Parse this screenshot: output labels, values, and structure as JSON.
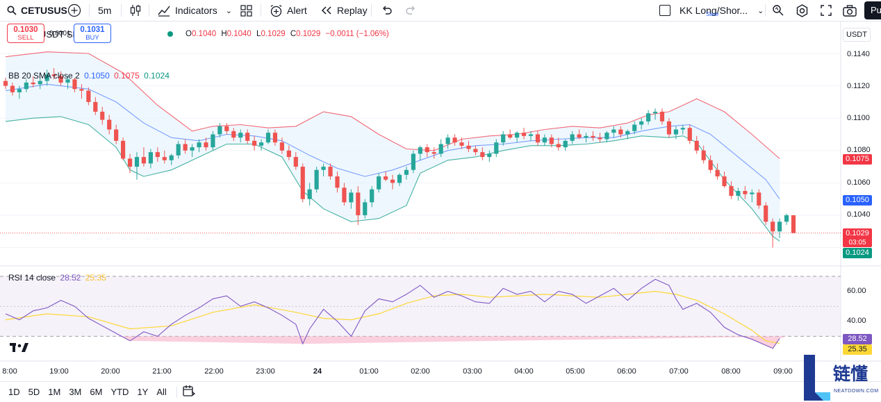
{
  "toolbar": {
    "symbol": "CETUSUS",
    "interval": "5m",
    "indicators_label": "Indicators",
    "alert_label": "Alert",
    "replay_label": "Replay",
    "layout_name": "KK Long/Shor...",
    "layout_save": "Save",
    "publish_label": "Pu"
  },
  "legend": {
    "title": "CETUSUSDT SPOT ·",
    "ohlc": {
      "o_label": "O",
      "o": "0.1040",
      "h_label": "H",
      "h": "0.1040",
      "l_label": "L",
      "l": "0.1029",
      "c_label": "C",
      "c": "0.1029",
      "change": "−0.0011 (−1.06%)"
    },
    "sell_price": "0.1030",
    "sell_label": "SELL",
    "spread": "0.0001",
    "buy_price": "0.1031",
    "buy_label": "BUY",
    "bb_label": "BB 20 SMA close 2",
    "bb_basis": "0.1050",
    "bb_upper": "0.1075",
    "bb_lower": "0.1024",
    "rsi_label": "RSI 14 close",
    "rsi_value": "28.52",
    "rsi_ma": "25.35"
  },
  "price_axis": {
    "currency": "USDT",
    "labels": [
      "0.1140",
      "0.1120",
      "0.1100",
      "0.1080",
      "0.1060",
      "0.1040"
    ],
    "tag_upper": "0.1075",
    "tag_basis": "0.1050",
    "tag_last": "0.1029",
    "tag_countdown": "03:05",
    "tag_lower": "0.1024"
  },
  "rsi_axis": {
    "labels": [
      "60.00",
      "40.00"
    ],
    "tag_rsi": "28.52",
    "tag_ma": "25.35"
  },
  "time_axis": [
    "8:00",
    "19:00",
    "20:00",
    "21:00",
    "22:00",
    "23:00",
    "24",
    "01:00",
    "02:00",
    "03:00",
    "04:00",
    "05:00",
    "06:00",
    "07:00",
    "08:00",
    "09:00"
  ],
  "range_bar": [
    "1D",
    "5D",
    "1M",
    "3M",
    "6M",
    "YTD",
    "1Y",
    "All"
  ],
  "colors": {
    "up": "#26a69a",
    "down": "#ef5350",
    "basis": "#2962ff",
    "upper": "#f23645",
    "lower": "#089981",
    "rsi": "#7e57c2",
    "rsi_ma": "#fdd835",
    "bb_fill": "#e3f2fd",
    "rsi_fill": "#ede7f6"
  },
  "watermark": {
    "text": "链懂",
    "sub": "NEATDOWN.COM"
  },
  "chart_data": {
    "type": "candlestick",
    "symbol": "CETUSUSDT SPOT",
    "time_start": "18:00",
    "time_end": "09:15",
    "ohlc": [
      [
        0.1123,
        0.1125,
        0.1118,
        0.112
      ],
      [
        0.112,
        0.1122,
        0.1114,
        0.1116
      ],
      [
        0.1116,
        0.112,
        0.1112,
        0.1118
      ],
      [
        0.1118,
        0.1124,
        0.1116,
        0.1122
      ],
      [
        0.1122,
        0.1126,
        0.1119,
        0.1121
      ],
      [
        0.1121,
        0.1125,
        0.1118,
        0.1123
      ],
      [
        0.1123,
        0.113,
        0.112,
        0.1127
      ],
      [
        0.1127,
        0.1131,
        0.1124,
        0.1126
      ],
      [
        0.1126,
        0.1129,
        0.112,
        0.1122
      ],
      [
        0.1122,
        0.1126,
        0.1118,
        0.1124
      ],
      [
        0.1124,
        0.1125,
        0.1116,
        0.1118
      ],
      [
        0.1118,
        0.1121,
        0.1112,
        0.1117
      ],
      [
        0.1117,
        0.1119,
        0.1108,
        0.111
      ],
      [
        0.111,
        0.1113,
        0.1102,
        0.1104
      ],
      [
        0.1104,
        0.1107,
        0.1096,
        0.1099
      ],
      [
        0.1099,
        0.1102,
        0.109,
        0.1093
      ],
      [
        0.1093,
        0.1096,
        0.1084,
        0.1086
      ],
      [
        0.1086,
        0.1088,
        0.1074,
        0.1075
      ],
      [
        0.1075,
        0.1078,
        0.1066,
        0.107
      ],
      [
        0.107,
        0.1079,
        0.1062,
        0.1076
      ],
      [
        0.1076,
        0.1082,
        0.107,
        0.1072
      ],
      [
        0.1072,
        0.1081,
        0.1069,
        0.1079
      ],
      [
        0.1079,
        0.1082,
        0.1073,
        0.1076
      ],
      [
        0.1076,
        0.108,
        0.1072,
        0.1074
      ],
      [
        0.1074,
        0.1078,
        0.1071,
        0.1077
      ],
      [
        0.1077,
        0.1086,
        0.1075,
        0.1084
      ],
      [
        0.1084,
        0.1087,
        0.1078,
        0.108
      ],
      [
        0.108,
        0.1084,
        0.1076,
        0.1082
      ],
      [
        0.1082,
        0.1087,
        0.1079,
        0.1085
      ],
      [
        0.1085,
        0.1088,
        0.108,
        0.1082
      ],
      [
        0.1082,
        0.1092,
        0.108,
        0.109
      ],
      [
        0.109,
        0.1097,
        0.1088,
        0.1095
      ],
      [
        0.1095,
        0.1097,
        0.109,
        0.1092
      ],
      [
        0.1092,
        0.1094,
        0.1086,
        0.1088
      ],
      [
        0.1088,
        0.1093,
        0.1085,
        0.1091
      ],
      [
        0.1091,
        0.1093,
        0.1084,
        0.1086
      ],
      [
        0.1086,
        0.1089,
        0.108,
        0.1083
      ],
      [
        0.1083,
        0.1087,
        0.108,
        0.1085
      ],
      [
        0.1085,
        0.1093,
        0.1084,
        0.1091
      ],
      [
        0.1091,
        0.1093,
        0.1083,
        0.1085
      ],
      [
        0.1085,
        0.1088,
        0.1078,
        0.108
      ],
      [
        0.108,
        0.1083,
        0.1074,
        0.1076
      ],
      [
        0.1076,
        0.1079,
        0.1068,
        0.107
      ],
      [
        0.107,
        0.1072,
        0.1048,
        0.105
      ],
      [
        0.105,
        0.106,
        0.1046,
        0.1056
      ],
      [
        0.1056,
        0.107,
        0.1054,
        0.1068
      ],
      [
        0.1068,
        0.1072,
        0.1064,
        0.107
      ],
      [
        0.107,
        0.1072,
        0.1062,
        0.1064
      ],
      [
        0.1064,
        0.1067,
        0.1054,
        0.1057
      ],
      [
        0.1057,
        0.106,
        0.1046,
        0.1048
      ],
      [
        0.1048,
        0.1056,
        0.1044,
        0.1054
      ],
      [
        0.1054,
        0.1058,
        0.1034,
        0.104
      ],
      [
        0.104,
        0.105,
        0.1038,
        0.1048
      ],
      [
        0.1048,
        0.1058,
        0.1045,
        0.1056
      ],
      [
        0.1056,
        0.1066,
        0.1054,
        0.1064
      ],
      [
        0.1064,
        0.1067,
        0.1061,
        0.1062
      ],
      [
        0.1062,
        0.1065,
        0.1056,
        0.106
      ],
      [
        0.106,
        0.1066,
        0.1058,
        0.1065
      ],
      [
        0.1065,
        0.107,
        0.1062,
        0.1068
      ],
      [
        0.1068,
        0.108,
        0.1066,
        0.1078
      ],
      [
        0.1078,
        0.1083,
        0.1074,
        0.1082
      ],
      [
        0.1082,
        0.1084,
        0.1076,
        0.1079
      ],
      [
        0.1079,
        0.1082,
        0.1075,
        0.1078
      ],
      [
        0.1078,
        0.1087,
        0.1076,
        0.1084
      ],
      [
        0.1084,
        0.109,
        0.1081,
        0.1088
      ],
      [
        0.1088,
        0.109,
        0.1083,
        0.1085
      ],
      [
        0.1085,
        0.1088,
        0.1081,
        0.1083
      ],
      [
        0.1083,
        0.1086,
        0.1079,
        0.1081
      ],
      [
        0.1081,
        0.1083,
        0.1077,
        0.1079
      ],
      [
        0.1079,
        0.1082,
        0.1074,
        0.1076
      ],
      [
        0.1076,
        0.108,
        0.1073,
        0.1078
      ],
      [
        0.1078,
        0.1087,
        0.1076,
        0.1085
      ],
      [
        0.1085,
        0.1092,
        0.1083,
        0.109
      ],
      [
        0.109,
        0.1093,
        0.1087,
        0.1088
      ],
      [
        0.1088,
        0.1092,
        0.1085,
        0.1091
      ],
      [
        0.1091,
        0.1094,
        0.1087,
        0.1089
      ],
      [
        0.1089,
        0.1092,
        0.1086,
        0.109
      ],
      [
        0.109,
        0.1092,
        0.1083,
        0.1085
      ],
      [
        0.1085,
        0.109,
        0.1083,
        0.1088
      ],
      [
        0.1088,
        0.109,
        0.1082,
        0.1084
      ],
      [
        0.1084,
        0.1088,
        0.108,
        0.1082
      ],
      [
        0.1082,
        0.1087,
        0.108,
        0.1086
      ],
      [
        0.1086,
        0.1092,
        0.1084,
        0.109
      ],
      [
        0.109,
        0.1093,
        0.1087,
        0.1088
      ],
      [
        0.1088,
        0.1091,
        0.1085,
        0.1089
      ],
      [
        0.1089,
        0.1092,
        0.1086,
        0.1088
      ],
      [
        0.1088,
        0.1091,
        0.1085,
        0.1087
      ],
      [
        0.1087,
        0.1092,
        0.1085,
        0.1091
      ],
      [
        0.1091,
        0.1095,
        0.1088,
        0.1093
      ],
      [
        0.1093,
        0.1095,
        0.1088,
        0.109
      ],
      [
        0.109,
        0.1093,
        0.1087,
        0.1092
      ],
      [
        0.1092,
        0.1098,
        0.109,
        0.1096
      ],
      [
        0.1096,
        0.11,
        0.1093,
        0.1098
      ],
      [
        0.1098,
        0.1105,
        0.1096,
        0.1103
      ],
      [
        0.1103,
        0.1106,
        0.1099,
        0.1104
      ],
      [
        0.1104,
        0.1106,
        0.1096,
        0.1098
      ],
      [
        0.1098,
        0.11,
        0.1088,
        0.109
      ],
      [
        0.109,
        0.1095,
        0.1087,
        0.1093
      ],
      [
        0.1093,
        0.1096,
        0.109,
        0.1094
      ],
      [
        0.1094,
        0.1096,
        0.1084,
        0.1086
      ],
      [
        0.1086,
        0.1089,
        0.1078,
        0.108
      ],
      [
        0.108,
        0.1083,
        0.1072,
        0.1074
      ],
      [
        0.1074,
        0.1077,
        0.1066,
        0.1068
      ],
      [
        0.1068,
        0.1072,
        0.1062,
        0.1064
      ],
      [
        0.1064,
        0.1067,
        0.1057,
        0.1058
      ],
      [
        0.1058,
        0.1061,
        0.105,
        0.1052
      ],
      [
        0.1052,
        0.1057,
        0.1049,
        0.1055
      ],
      [
        0.1055,
        0.1058,
        0.105,
        0.1053
      ],
      [
        0.1053,
        0.1056,
        0.1048,
        0.1054
      ],
      [
        0.1054,
        0.1056,
        0.1044,
        0.1046
      ],
      [
        0.1046,
        0.1048,
        0.1034,
        0.1036
      ],
      [
        0.1036,
        0.1038,
        0.102,
        0.103
      ],
      [
        0.103,
        0.1038,
        0.1026,
        0.1036
      ],
      [
        0.1036,
        0.1041,
        0.1034,
        0.104
      ],
      [
        0.104,
        0.104,
        0.1029,
        0.1029
      ]
    ],
    "bb_upper": [
      [
        0,
        0.1138
      ],
      [
        6,
        0.1141
      ],
      [
        12,
        0.114
      ],
      [
        17,
        0.1128
      ],
      [
        22,
        0.1108
      ],
      [
        27,
        0.1092
      ],
      [
        30,
        0.1095
      ],
      [
        34,
        0.1096
      ],
      [
        38,
        0.1094
      ],
      [
        42,
        0.1095
      ],
      [
        46,
        0.1104
      ],
      [
        50,
        0.1101
      ],
      [
        54,
        0.109
      ],
      [
        58,
        0.1081
      ],
      [
        62,
        0.108
      ],
      [
        66,
        0.1087
      ],
      [
        70,
        0.1089
      ],
      [
        74,
        0.109
      ],
      [
        78,
        0.1093
      ],
      [
        82,
        0.1095
      ],
      [
        86,
        0.1094
      ],
      [
        90,
        0.1097
      ],
      [
        93,
        0.1102
      ],
      [
        96,
        0.1104
      ],
      [
        98,
        0.1108
      ],
      [
        100,
        0.1112
      ],
      [
        104,
        0.1104
      ],
      [
        108,
        0.109
      ],
      [
        112,
        0.1075
      ]
    ],
    "bb_basis": [
      [
        0,
        0.1117
      ],
      [
        6,
        0.1121
      ],
      [
        12,
        0.1118
      ],
      [
        16,
        0.111
      ],
      [
        20,
        0.1097
      ],
      [
        24,
        0.1088
      ],
      [
        28,
        0.1086
      ],
      [
        32,
        0.109
      ],
      [
        36,
        0.1089
      ],
      [
        40,
        0.1086
      ],
      [
        44,
        0.1077
      ],
      [
        48,
        0.1069
      ],
      [
        52,
        0.1064
      ],
      [
        56,
        0.1068
      ],
      [
        60,
        0.1074
      ],
      [
        64,
        0.108
      ],
      [
        68,
        0.1083
      ],
      [
        72,
        0.1084
      ],
      [
        76,
        0.1086
      ],
      [
        80,
        0.1087
      ],
      [
        84,
        0.1088
      ],
      [
        88,
        0.1088
      ],
      [
        92,
        0.1092
      ],
      [
        96,
        0.1095
      ],
      [
        99,
        0.1096
      ],
      [
        102,
        0.109
      ],
      [
        106,
        0.1076
      ],
      [
        110,
        0.1062
      ],
      [
        112,
        0.105
      ]
    ],
    "bb_lower": [
      [
        0,
        0.1098
      ],
      [
        4,
        0.11
      ],
      [
        8,
        0.1101
      ],
      [
        12,
        0.1096
      ],
      [
        16,
        0.1082
      ],
      [
        18,
        0.1068
      ],
      [
        20,
        0.1064
      ],
      [
        24,
        0.1068
      ],
      [
        28,
        0.1076
      ],
      [
        32,
        0.1084
      ],
      [
        36,
        0.1084
      ],
      [
        40,
        0.1076
      ],
      [
        43,
        0.1055
      ],
      [
        46,
        0.1044
      ],
      [
        50,
        0.1036
      ],
      [
        54,
        0.1038
      ],
      [
        58,
        0.1046
      ],
      [
        60,
        0.1066
      ],
      [
        64,
        0.1074
      ],
      [
        68,
        0.1076
      ],
      [
        72,
        0.108
      ],
      [
        76,
        0.1083
      ],
      [
        80,
        0.1083
      ],
      [
        84,
        0.1084
      ],
      [
        88,
        0.1086
      ],
      [
        92,
        0.1089
      ],
      [
        96,
        0.1088
      ],
      [
        98,
        0.1089
      ],
      [
        100,
        0.1085
      ],
      [
        104,
        0.1062
      ],
      [
        108,
        0.1044
      ],
      [
        111,
        0.1027
      ],
      [
        112,
        0.1024
      ]
    ],
    "rsi": [
      [
        0,
        45
      ],
      [
        2,
        41
      ],
      [
        4,
        47
      ],
      [
        6,
        49
      ],
      [
        8,
        54
      ],
      [
        10,
        50
      ],
      [
        12,
        42
      ],
      [
        14,
        37
      ],
      [
        16,
        32
      ],
      [
        18,
        27
      ],
      [
        20,
        33
      ],
      [
        22,
        30
      ],
      [
        24,
        38
      ],
      [
        26,
        44
      ],
      [
        28,
        49
      ],
      [
        30,
        55
      ],
      [
        32,
        57
      ],
      [
        34,
        50
      ],
      [
        36,
        53
      ],
      [
        38,
        49
      ],
      [
        40,
        44
      ],
      [
        42,
        38
      ],
      [
        43,
        25
      ],
      [
        44,
        35
      ],
      [
        46,
        48
      ],
      [
        48,
        40
      ],
      [
        50,
        30
      ],
      [
        52,
        47
      ],
      [
        54,
        55
      ],
      [
        56,
        53
      ],
      [
        58,
        58
      ],
      [
        60,
        64
      ],
      [
        62,
        56
      ],
      [
        64,
        60
      ],
      [
        66,
        57
      ],
      [
        68,
        53
      ],
      [
        70,
        52
      ],
      [
        72,
        62
      ],
      [
        74,
        58
      ],
      [
        76,
        60
      ],
      [
        78,
        53
      ],
      [
        80,
        60
      ],
      [
        82,
        58
      ],
      [
        84,
        52
      ],
      [
        86,
        57
      ],
      [
        88,
        62
      ],
      [
        90,
        54
      ],
      [
        92,
        62
      ],
      [
        94,
        68
      ],
      [
        96,
        64
      ],
      [
        97,
        55
      ],
      [
        98,
        48
      ],
      [
        100,
        52
      ],
      [
        102,
        46
      ],
      [
        104,
        36
      ],
      [
        106,
        31
      ],
      [
        108,
        28
      ],
      [
        110,
        24
      ],
      [
        111,
        22
      ],
      [
        112,
        28.52
      ]
    ],
    "rsi_ma": [
      [
        0,
        41
      ],
      [
        6,
        45
      ],
      [
        12,
        43
      ],
      [
        18,
        35
      ],
      [
        24,
        37
      ],
      [
        30,
        46
      ],
      [
        36,
        51
      ],
      [
        42,
        46
      ],
      [
        46,
        42
      ],
      [
        50,
        41
      ],
      [
        54,
        45
      ],
      [
        58,
        52
      ],
      [
        62,
        57
      ],
      [
        66,
        58
      ],
      [
        70,
        56
      ],
      [
        74,
        57
      ],
      [
        78,
        58
      ],
      [
        82,
        57
      ],
      [
        86,
        56
      ],
      [
        90,
        58
      ],
      [
        94,
        60
      ],
      [
        97,
        58
      ],
      [
        100,
        54
      ],
      [
        104,
        45
      ],
      [
        108,
        34
      ],
      [
        110,
        27
      ],
      [
        112,
        25.35
      ]
    ],
    "price_ylim": [
      0.1015,
      0.115
    ],
    "rsi_ylim": [
      20,
      70
    ],
    "rsi_bands": [
      70,
      50,
      30
    ],
    "last_price": 0.1029
  }
}
